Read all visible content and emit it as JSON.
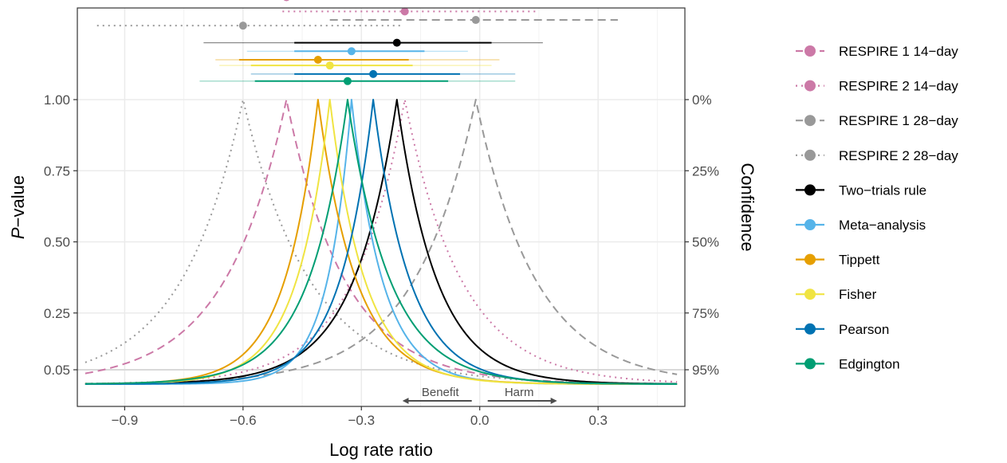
{
  "chart_data": {
    "type": "line",
    "xlabel": "Log rate ratio",
    "ylabel_prefix": "P",
    "ylabel_suffix": "−value",
    "y2label": "Confidence",
    "xlim": [
      -1.02,
      0.52
    ],
    "ylim": [
      0,
      1.45
    ],
    "x_ticks": [
      -0.9,
      -0.6,
      -0.3,
      0.0,
      0.3
    ],
    "x_tick_labels": [
      "−0.9",
      "−0.6",
      "−0.3",
      "0.0",
      "0.3"
    ],
    "y_ticks": [
      1.0,
      0.75,
      0.5,
      0.25,
      0.05
    ],
    "y_tick_labels": [
      "1.00",
      "0.75",
      "0.50",
      "0.25",
      "0.05"
    ],
    "y2_tick_labels": [
      "0%",
      "25%",
      "50%",
      "75%",
      "95%"
    ],
    "grid": true,
    "legend_position": "right",
    "annotations": {
      "benefit": "Benefit",
      "harm": "Harm",
      "arrow_from": 0.0,
      "benefit_to": -0.2,
      "harm_to": 0.2
    },
    "x_range_curve": [
      -1.0,
      0.5
    ],
    "series": [
      {
        "name": "RESPIRE 1 14−day",
        "color": "#CC79A7",
        "dash": "dashed",
        "estimate": -0.49,
        "ci": [
          -0.86,
          -0.14
        ],
        "interval_level": 1.36,
        "curve_opacity": 1.0,
        "ci_opacity": 1.0
      },
      {
        "name": "RESPIRE 2 14−day",
        "color": "#CC79A7",
        "dash": "dotted",
        "estimate": -0.19,
        "ci": [
          -0.5,
          0.15
        ],
        "interval_level": 1.31,
        "curve_opacity": 1.0,
        "ci_opacity": 1.0
      },
      {
        "name": "RESPIRE 1 28−day",
        "color": "#999999",
        "dash": "dashed",
        "estimate": -0.01,
        "ci": [
          -0.38,
          0.35
        ],
        "interval_level": 1.28,
        "curve_opacity": 1.0,
        "ci_opacity": 1.0
      },
      {
        "name": "RESPIRE 2 28−day",
        "color": "#999999",
        "dash": "dotted",
        "estimate": -0.6,
        "ci": [
          -0.97,
          -0.2
        ],
        "interval_level": 1.26,
        "curve_opacity": 1.0,
        "ci_opacity": 1.0
      },
      {
        "name": "Two−trials rule",
        "color": "#000000",
        "dash": "solid",
        "estimate": -0.21,
        "ci": [
          -0.47,
          0.03
        ],
        "ci_outer": [
          -0.7,
          0.16
        ],
        "interval_level": 1.2,
        "curve_opacity": 1.0,
        "ci_opacity": 1.0
      },
      {
        "name": "Meta−analysis",
        "color": "#56B4E9",
        "dash": "solid",
        "estimate": -0.325,
        "ci": [
          -0.47,
          -0.14
        ],
        "ci_outer": [
          -0.59,
          -0.03
        ],
        "interval_level": 1.17,
        "curve_opacity": 1.0,
        "ci_opacity": 1.0
      },
      {
        "name": "Tippett",
        "color": "#E69F00",
        "dash": "solid",
        "estimate": -0.41,
        "ci": [
          -0.61,
          -0.18
        ],
        "ci_outer": [
          -0.67,
          0.05
        ],
        "interval_level": 1.14,
        "curve_opacity": 1.0,
        "ci_opacity": 1.0
      },
      {
        "name": "Fisher",
        "color": "#F0E442",
        "dash": "solid",
        "estimate": -0.38,
        "ci": [
          -0.58,
          -0.17
        ],
        "ci_outer": [
          -0.66,
          0.03
        ],
        "interval_level": 1.12,
        "curve_opacity": 1.0,
        "ci_opacity": 1.0
      },
      {
        "name": "Pearson",
        "color": "#0072B2",
        "dash": "solid",
        "estimate": -0.27,
        "ci": [
          -0.47,
          -0.05
        ],
        "ci_outer": [
          -0.58,
          0.09
        ],
        "interval_level": 1.09,
        "curve_opacity": 1.0,
        "ci_opacity": 1.0
      },
      {
        "name": "Edgington",
        "color": "#009E73",
        "dash": "solid",
        "estimate": -0.335,
        "ci": [
          -0.57,
          -0.08
        ],
        "ci_outer": [
          -0.71,
          0.09
        ],
        "interval_level": 1.065,
        "curve_opacity": 1.0,
        "ci_opacity": 1.0
      }
    ]
  }
}
